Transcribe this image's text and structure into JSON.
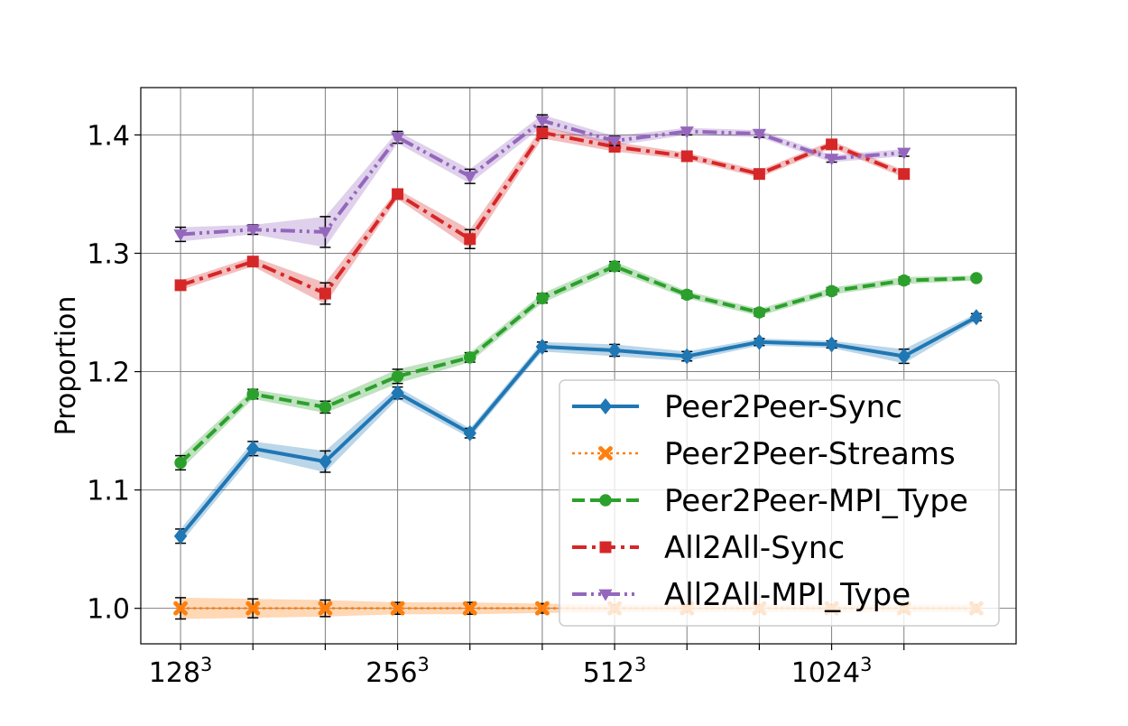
{
  "chart_data": {
    "type": "line",
    "ylabel": "Proportion",
    "xlabel": "",
    "x": [
      1,
      2,
      3,
      4,
      5,
      6,
      7,
      8,
      9,
      10,
      11,
      12
    ],
    "xlim": [
      0.45,
      12.55
    ],
    "ylim": [
      0.97,
      1.44
    ],
    "x_ticks": [
      {
        "x": 1,
        "base": "128",
        "exp": "3"
      },
      {
        "x": 4,
        "base": "256",
        "exp": "3"
      },
      {
        "x": 7,
        "base": "512",
        "exp": "3"
      },
      {
        "x": 10,
        "base": "1024",
        "exp": "3"
      }
    ],
    "x_minor_ticks": [
      2,
      3,
      5,
      6,
      8,
      9,
      11
    ],
    "y_ticks": [
      "1.0",
      "1.1",
      "1.2",
      "1.3",
      "1.4"
    ],
    "grid": true,
    "legend_position": "lower-right",
    "series": [
      {
        "name": "Peer2Peer-Sync",
        "color": "#1f77b4",
        "linestyle": "solid",
        "marker": "diamond",
        "x": [
          1,
          2,
          3,
          4,
          5,
          6,
          7,
          8,
          9,
          10,
          11,
          12
        ],
        "values": [
          1.061,
          1.135,
          1.124,
          1.182,
          1.148,
          1.221,
          1.218,
          1.213,
          1.225,
          1.223,
          1.213,
          1.246
        ],
        "band": [
          0.006,
          0.006,
          0.009,
          0.005,
          0.004,
          0.004,
          0.005,
          0.004,
          0.003,
          0.003,
          0.006,
          0.003
        ]
      },
      {
        "name": "Peer2Peer-Streams",
        "color": "#ff7f0e",
        "linestyle": "dotted",
        "marker": "x",
        "x": [
          1,
          2,
          3,
          4,
          5,
          6,
          7,
          8,
          9,
          10,
          11,
          12
        ],
        "values": [
          1.0,
          1.0,
          1.0,
          1.0,
          1.0,
          1.0,
          1.0,
          1.0,
          1.0,
          1.0,
          1.0,
          1.0
        ],
        "band": [
          0.009,
          0.008,
          0.007,
          0.005,
          0.005,
          0.004,
          0.003,
          0.003,
          0.003,
          0.003,
          0.003,
          0.003
        ]
      },
      {
        "name": "Peer2Peer-MPI_Type",
        "color": "#2ca02c",
        "linestyle": "dashed",
        "marker": "circle",
        "x": [
          1,
          2,
          3,
          4,
          5,
          6,
          7,
          8,
          9,
          10,
          11,
          12
        ],
        "values": [
          1.123,
          1.181,
          1.17,
          1.196,
          1.212,
          1.262,
          1.289,
          1.265,
          1.25,
          1.268,
          1.277,
          1.279
        ],
        "band": [
          0.006,
          0.004,
          0.005,
          0.006,
          0.004,
          0.004,
          0.004,
          0.003,
          0.003,
          0.003,
          0.003,
          0.002
        ]
      },
      {
        "name": "All2All-Sync",
        "color": "#d62728",
        "linestyle": "dashdot",
        "marker": "square",
        "x": [
          1,
          2,
          3,
          4,
          5,
          6,
          7,
          8,
          9,
          10,
          11
        ],
        "values": [
          1.273,
          1.293,
          1.266,
          1.35,
          1.312,
          1.402,
          1.39,
          1.382,
          1.367,
          1.392,
          1.367
        ],
        "band": [
          0.004,
          0.004,
          0.009,
          0.004,
          0.008,
          0.005,
          0.004,
          0.003,
          0.003,
          0.003,
          0.003
        ]
      },
      {
        "name": "All2All-MPI_Type",
        "color": "#9467bd",
        "linestyle": "dashdotdot",
        "marker": "triangle-down",
        "x": [
          1,
          2,
          3,
          4,
          5,
          6,
          7,
          8,
          9,
          10,
          11
        ],
        "values": [
          1.316,
          1.32,
          1.318,
          1.398,
          1.365,
          1.412,
          1.395,
          1.403,
          1.401,
          1.38,
          1.385
        ],
        "band": [
          0.006,
          0.004,
          0.013,
          0.005,
          0.006,
          0.005,
          0.004,
          0.003,
          0.003,
          0.003,
          0.003
        ]
      }
    ]
  }
}
